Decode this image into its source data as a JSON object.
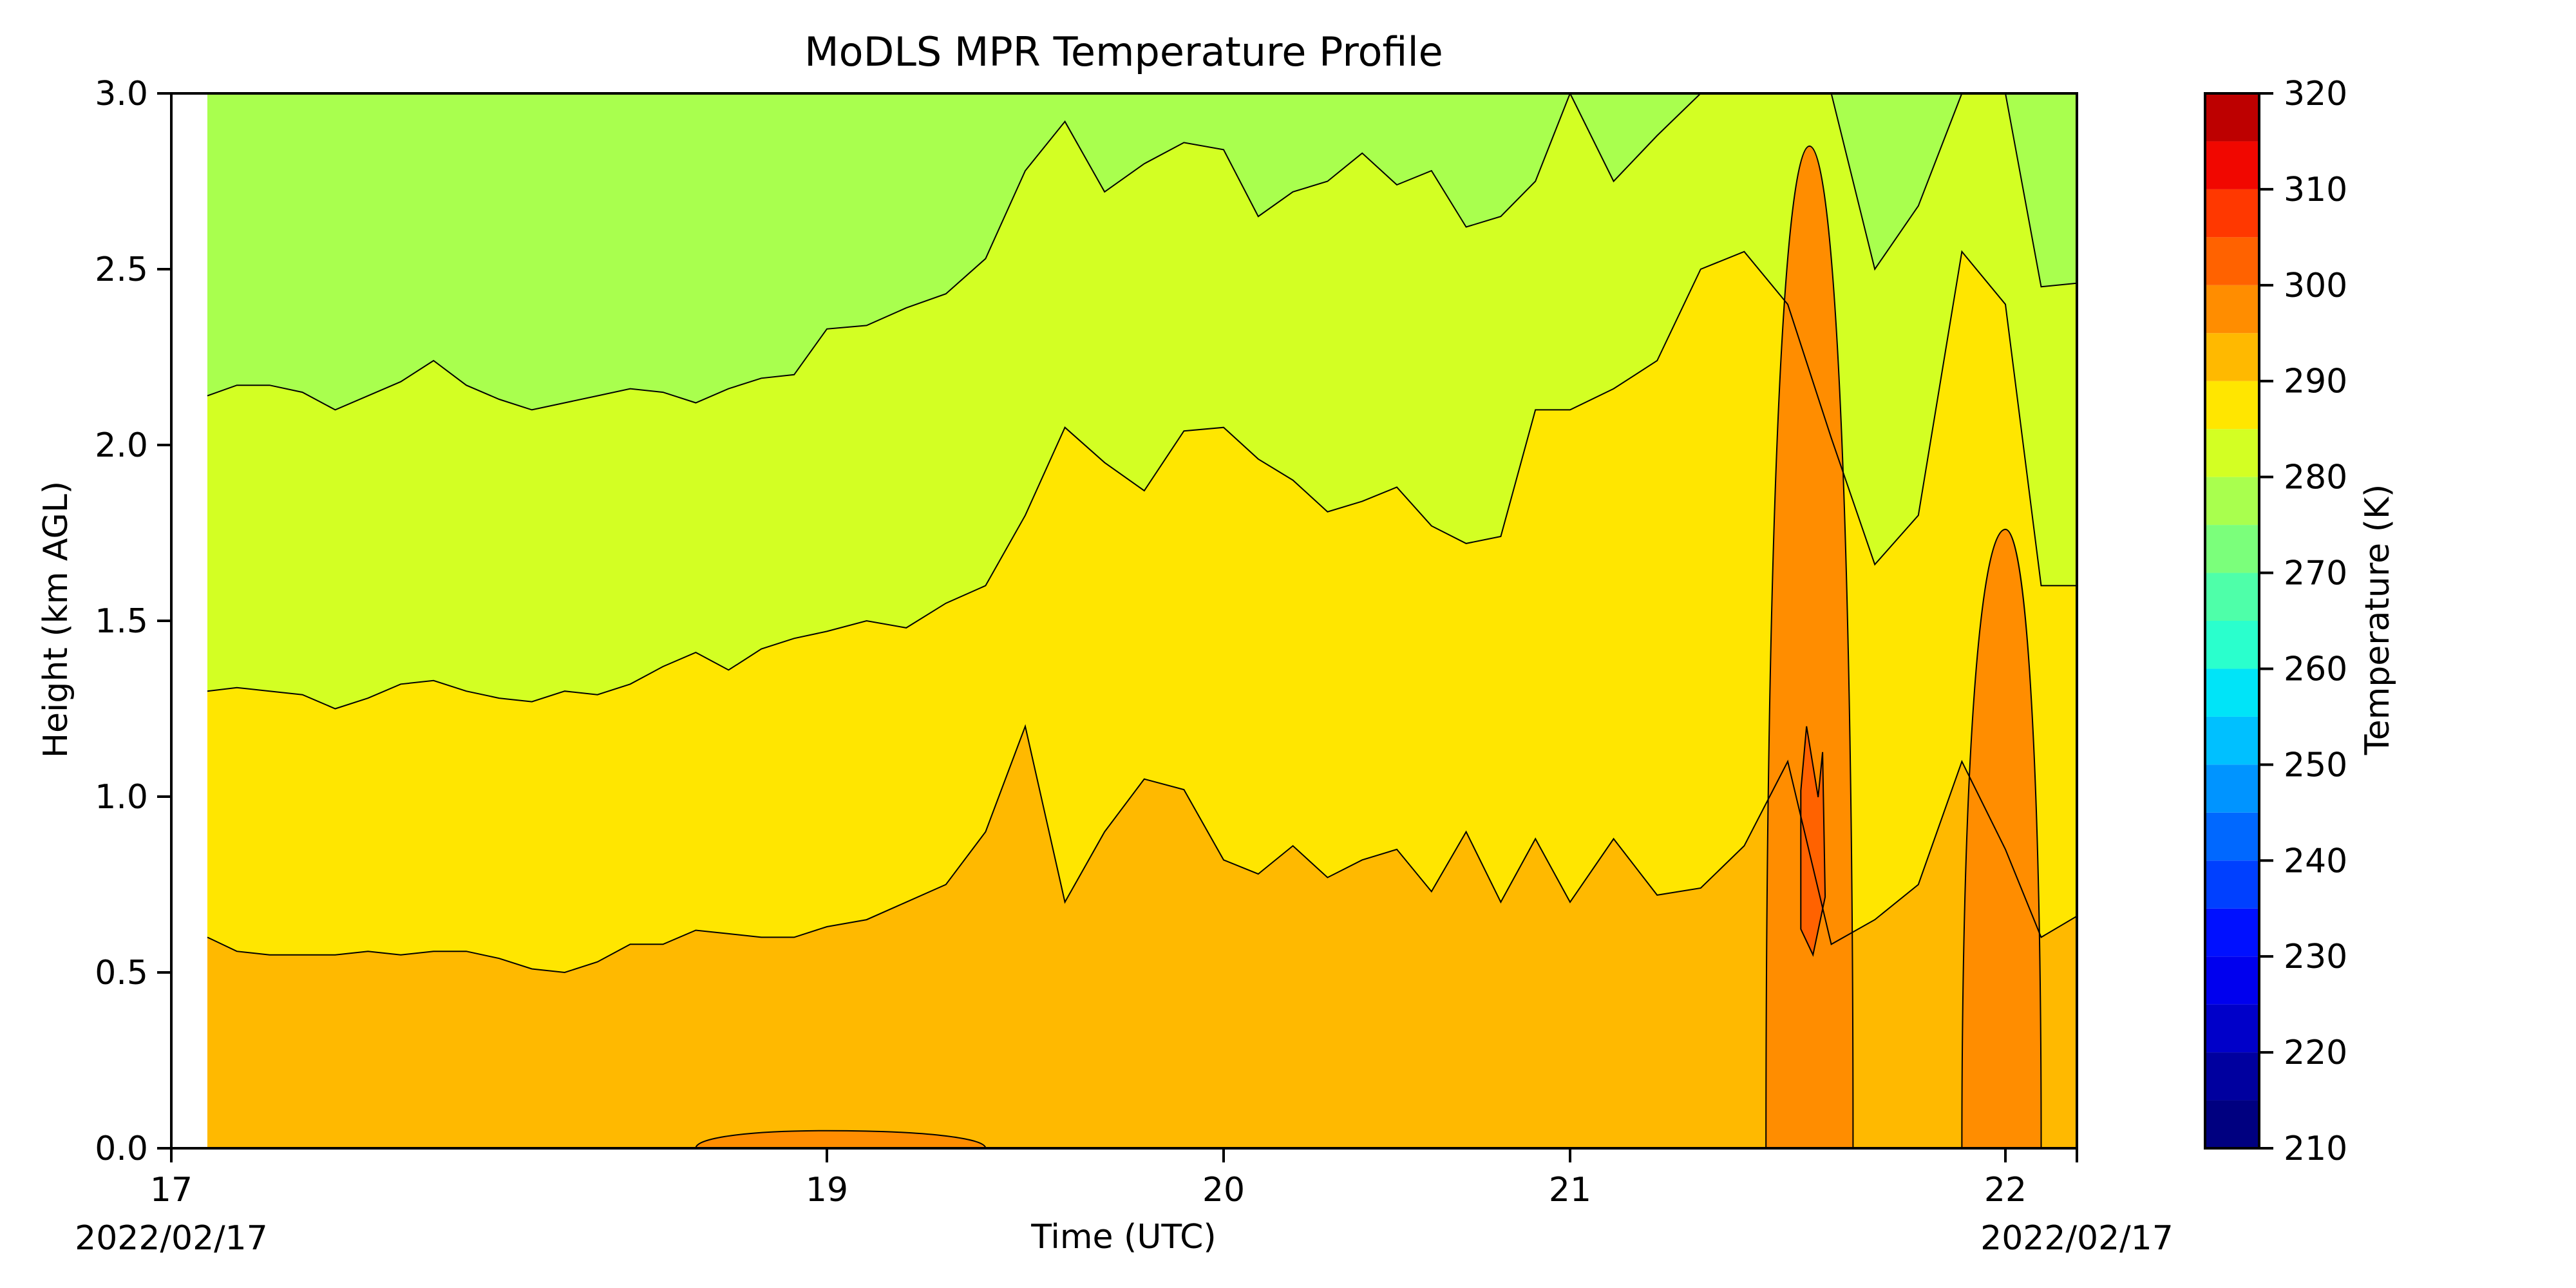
{
  "chart_data": {
    "type": "heatmap",
    "subtype": "filled-contour",
    "title": "MoDLS MPR Temperature Profile",
    "xlabel": "Time (UTC)",
    "ylabel": "Height (km AGL)",
    "xlim": [
      17.0,
      22.2
    ],
    "ylim": [
      0.0,
      3.0
    ],
    "x_ticks": [
      {
        "value": 17,
        "label": "17"
      },
      {
        "value": 19,
        "label": "19"
      },
      {
        "value": 20,
        "label": "20"
      },
      {
        "value": 21,
        "label": "21"
      },
      {
        "value": 22,
        "label": "22"
      }
    ],
    "y_ticks": [
      {
        "value": 0.0,
        "label": "0.0"
      },
      {
        "value": 0.5,
        "label": "0.5"
      },
      {
        "value": 1.0,
        "label": "1.0"
      },
      {
        "value": 1.5,
        "label": "1.5"
      },
      {
        "value": 2.0,
        "label": "2.0"
      },
      {
        "value": 2.5,
        "label": "2.5"
      },
      {
        "value": 3.0,
        "label": "3.0"
      }
    ],
    "date_labels": {
      "left": "2022/02/17",
      "right": "2022/02/17"
    },
    "data_start_x": 17.11,
    "grid": false,
    "colorbar": {
      "label": "Temperature (K)",
      "min": 210,
      "max": 320,
      "levels": [
        210,
        215,
        220,
        225,
        230,
        235,
        240,
        245,
        250,
        255,
        260,
        265,
        270,
        275,
        280,
        285,
        290,
        295,
        300,
        305,
        310,
        315,
        320
      ],
      "colors": [
        "#000080",
        "#00009f",
        "#0000c9",
        "#0000ee",
        "#0010ff",
        "#0040ff",
        "#0068ff",
        "#0094ff",
        "#00c0ff",
        "#00e4f8",
        "#2affcd",
        "#4effa9",
        "#7bff7b",
        "#a9ff4e",
        "#d3ff23",
        "#ffe600",
        "#ffb900",
        "#ff8d00",
        "#ff6200",
        "#ff3800",
        "#f10700",
        "#bd0000",
        "#800000"
      ],
      "tick_labels": [
        "210",
        "220",
        "230",
        "240",
        "250",
        "260",
        "270",
        "280",
        "290",
        "300",
        "310",
        "320"
      ]
    },
    "contours": [
      {
        "name": "277.5 K",
        "x": [
          17.11,
          17.2,
          17.3,
          17.4,
          17.5,
          17.6,
          17.7,
          17.8,
          17.9,
          18.0,
          18.1,
          18.2,
          18.3,
          18.4,
          18.5,
          18.6,
          18.7,
          18.8,
          18.9,
          19.0,
          19.1,
          19.2,
          19.3,
          19.4,
          19.5,
          19.6,
          19.7,
          19.8,
          19.9,
          20.0,
          20.1,
          20.2,
          20.3,
          20.4,
          20.5,
          20.6,
          20.7,
          20.8,
          20.9,
          21.0,
          21.1,
          21.2,
          21.3,
          21.4,
          21.5,
          21.6,
          21.7,
          21.8,
          21.9,
          22.0,
          22.1,
          22.2
        ],
        "y": [
          2.14,
          2.17,
          2.17,
          2.15,
          2.1,
          2.14,
          2.18,
          2.24,
          2.17,
          2.13,
          2.1,
          2.12,
          2.14,
          2.16,
          2.15,
          2.12,
          2.16,
          2.19,
          2.2,
          2.33,
          2.34,
          2.39,
          2.43,
          2.53,
          2.78,
          2.92,
          2.72,
          2.8,
          2.86,
          2.84,
          2.65,
          2.72,
          2.75,
          2.83,
          2.74,
          2.78,
          2.62,
          2.65,
          2.75,
          3.0,
          2.75,
          2.88,
          3.0,
          3.0,
          3.0,
          3.0,
          2.5,
          2.68,
          3.0,
          3.0,
          2.45,
          2.46
        ]
      },
      {
        "name": "282.5 K",
        "x": [
          17.11,
          17.2,
          17.3,
          17.4,
          17.5,
          17.6,
          17.7,
          17.8,
          17.9,
          18.0,
          18.1,
          18.2,
          18.3,
          18.4,
          18.5,
          18.6,
          18.7,
          18.8,
          18.9,
          19.0,
          19.1,
          19.2,
          19.3,
          19.4,
          19.5,
          19.6,
          19.7,
          19.8,
          19.9,
          20.0,
          20.1,
          20.2,
          20.3,
          20.4,
          20.5,
          20.6,
          20.7,
          20.8,
          20.9,
          21.0,
          21.1,
          21.2,
          21.3,
          21.4,
          21.5,
          21.6,
          21.7,
          21.8,
          21.9,
          22.0,
          22.1,
          22.2
        ],
        "y": [
          1.3,
          1.31,
          1.3,
          1.29,
          1.25,
          1.28,
          1.32,
          1.33,
          1.3,
          1.28,
          1.27,
          1.3,
          1.29,
          1.32,
          1.37,
          1.41,
          1.36,
          1.42,
          1.45,
          1.47,
          1.5,
          1.48,
          1.55,
          1.6,
          1.8,
          2.05,
          1.95,
          1.87,
          2.04,
          2.05,
          1.96,
          1.9,
          1.81,
          1.84,
          1.88,
          1.77,
          1.72,
          1.74,
          2.1,
          2.1,
          2.16,
          2.24,
          2.5,
          2.55,
          2.4,
          2.02,
          1.66,
          1.8,
          2.55,
          2.4,
          1.6,
          1.6
        ]
      },
      {
        "name": "287.5 K",
        "x": [
          17.11,
          17.2,
          17.3,
          17.4,
          17.5,
          17.6,
          17.7,
          17.8,
          17.9,
          18.0,
          18.1,
          18.2,
          18.3,
          18.4,
          18.5,
          18.6,
          18.7,
          18.8,
          18.9,
          19.0,
          19.1,
          19.2,
          19.3,
          19.4,
          19.5,
          19.6,
          19.7,
          19.8,
          19.9,
          20.0,
          20.1,
          20.2,
          20.3,
          20.4,
          20.5,
          20.6,
          20.7,
          20.8,
          20.9,
          21.0,
          21.1,
          21.2,
          21.3,
          21.4,
          21.5,
          21.6,
          21.7,
          21.8,
          21.9,
          22.0,
          22.1,
          22.2
        ],
        "y": [
          0.6,
          0.56,
          0.55,
          0.55,
          0.55,
          0.56,
          0.55,
          0.56,
          0.56,
          0.54,
          0.51,
          0.5,
          0.53,
          0.58,
          0.58,
          0.62,
          0.61,
          0.6,
          0.6,
          0.63,
          0.65,
          0.7,
          0.75,
          0.9,
          1.2,
          0.7,
          0.9,
          1.05,
          1.02,
          0.82,
          0.78,
          0.86,
          0.77,
          0.82,
          0.85,
          0.73,
          0.9,
          0.7,
          0.88,
          0.7,
          0.88,
          0.72,
          0.74,
          0.86,
          1.1,
          0.58,
          0.65,
          0.75,
          1.1,
          0.85,
          0.6,
          0.66
        ]
      }
    ],
    "annotations": [
      {
        "name": "warm-pocket-near-surface",
        "band": "292.5-297.5 K",
        "x": [
          18.6,
          19.4
        ],
        "y": [
          0.0,
          0.05
        ]
      },
      {
        "name": "warm-core-21.5",
        "band": "292.5-297.5 K",
        "x": [
          21.45,
          21.65
        ],
        "y": [
          0.0,
          2.85
        ]
      },
      {
        "name": "warm-core-21.5-inner",
        "band": "297.5-302.5 K",
        "x": [
          21.53,
          21.58
        ],
        "y": [
          0.55,
          1.2
        ]
      },
      {
        "name": "warm-core-21.95",
        "band": "292.5-297.5 K",
        "x": [
          21.9,
          22.1
        ],
        "y": [
          0.0,
          1.76
        ]
      }
    ]
  }
}
